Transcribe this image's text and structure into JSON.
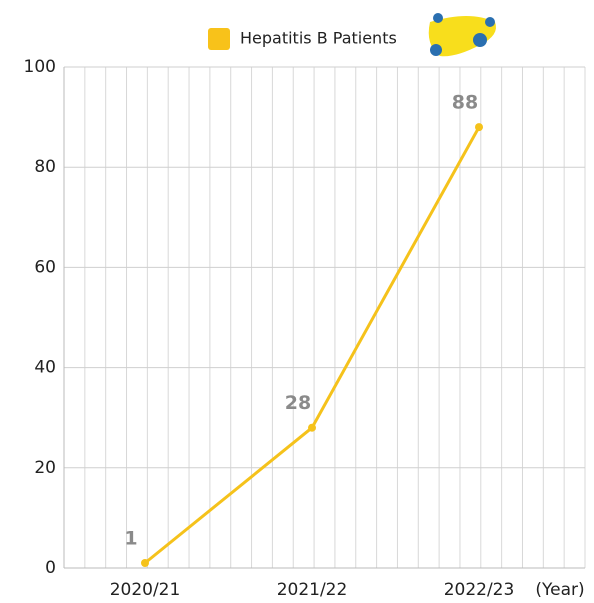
{
  "chart_data": {
    "type": "line",
    "x_label": "(Year)",
    "categories": [
      "2020/21",
      "2021/22",
      "2022/23"
    ],
    "series": [
      {
        "name": "Hepatitis B Patients",
        "color": "#f5c21b",
        "values": [
          1,
          28,
          88
        ]
      }
    ],
    "ylim": [
      0,
      100
    ],
    "yticks": [
      0,
      20,
      40,
      60,
      80,
      100
    ],
    "grid": true,
    "legend": "top"
  }
}
